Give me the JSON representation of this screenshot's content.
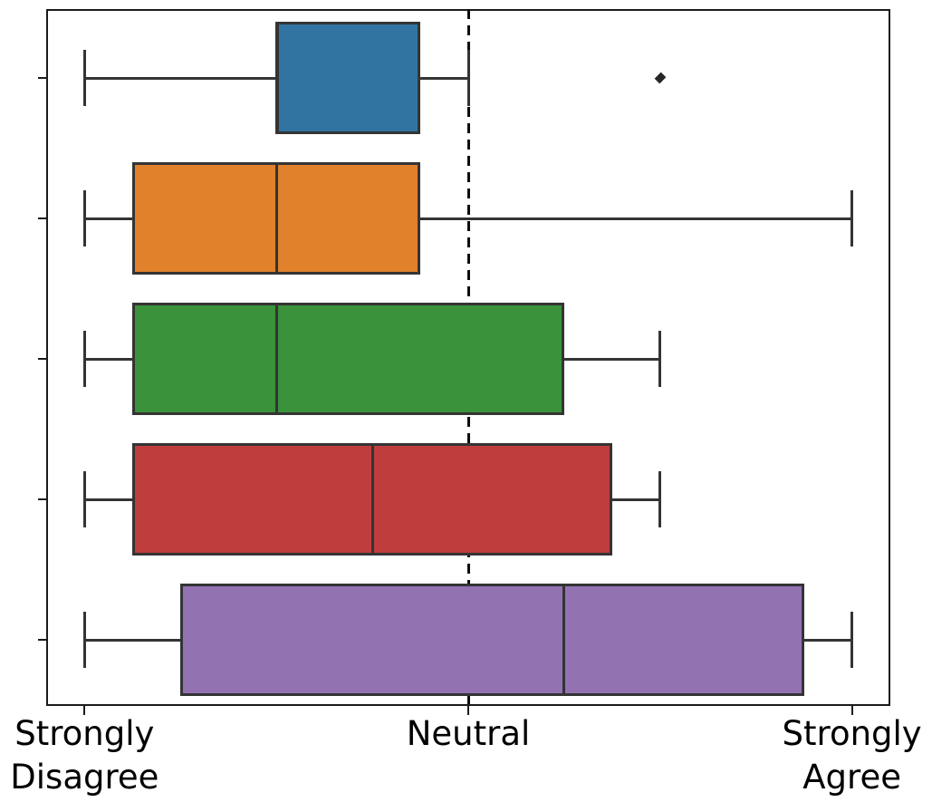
{
  "figure": {
    "background": "#ffffff",
    "spine_color": "#1b1b1b",
    "element_line_color": "#343434",
    "reference_line_color": "#0d0d0d",
    "text_color": "#000000"
  },
  "chart_data": {
    "type": "boxplot",
    "orientation": "horizontal",
    "title": "",
    "xlabel": "",
    "ylabel": "",
    "grid": false,
    "legend": false,
    "x_axis": {
      "lim": [
        0.8,
        5.2
      ],
      "ticks": [
        {
          "value": 1,
          "label": "Strongly\nDisagree"
        },
        {
          "value": 3,
          "label": "Neutral"
        },
        {
          "value": 5,
          "label": "Strongly\nAgree"
        }
      ]
    },
    "y_axis": {
      "categories_labeled": false,
      "n_categories": 5
    },
    "reference_line": {
      "x": 3,
      "style": "dashed"
    },
    "groups": [
      {
        "color": "#3274A1",
        "whisker_low": 1.0,
        "q1": 2.0,
        "median": 2.0,
        "q3": 2.75,
        "whisker_high": 3.0,
        "outliers": [
          4.0
        ]
      },
      {
        "color": "#E1812C",
        "whisker_low": 1.0,
        "q1": 1.25,
        "median": 2.0,
        "q3": 2.75,
        "whisker_high": 5.0,
        "outliers": []
      },
      {
        "color": "#3A923A",
        "whisker_low": 1.0,
        "q1": 1.25,
        "median": 2.0,
        "q3": 3.5,
        "whisker_high": 4.0,
        "outliers": []
      },
      {
        "color": "#C03D3E",
        "whisker_low": 1.0,
        "q1": 1.25,
        "median": 2.5,
        "q3": 3.75,
        "whisker_high": 4.0,
        "outliers": []
      },
      {
        "color": "#9372B2",
        "whisker_low": 1.0,
        "q1": 1.5,
        "median": 3.5,
        "q3": 4.75,
        "whisker_high": 5.0,
        "outliers": []
      }
    ]
  }
}
